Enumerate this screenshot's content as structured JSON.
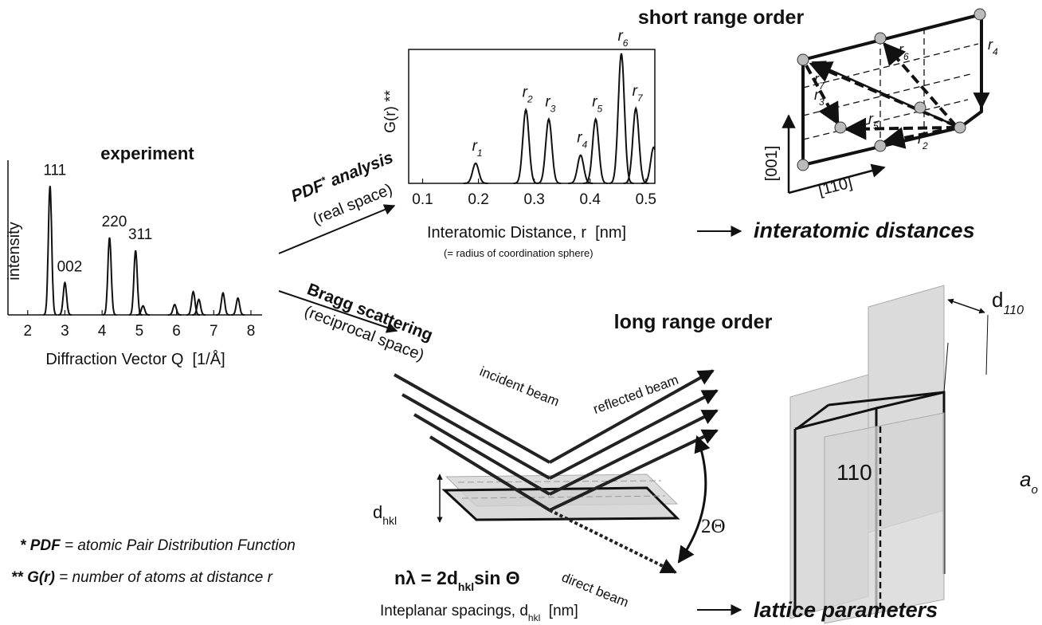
{
  "experiment": {
    "type": "peaks",
    "title": "experiment",
    "ylabel": "intensity",
    "xlabel": "Diffraction Vector Q  [1/Å]",
    "xlim": [
      1.47,
      8.3
    ],
    "ylim": [
      0,
      1.2
    ],
    "xticks": [
      2,
      3,
      4,
      5,
      6,
      7,
      8
    ],
    "x": [
      2.6,
      3.0,
      4.2,
      4.9,
      5.1,
      5.95,
      6.45,
      6.6,
      7.25,
      7.65
    ],
    "values": [
      1.0,
      0.25,
      0.6,
      0.5,
      0.07,
      0.08,
      0.18,
      0.12,
      0.17,
      0.13
    ],
    "peak_labels": [
      "111",
      "002",
      "220",
      "311",
      null,
      null,
      null,
      null,
      null,
      null
    ]
  },
  "pdf": {
    "type": "peaks",
    "ylabel": "G(r) **",
    "xlabel": "Interatomic Distance, r  [nm]",
    "note": "(= radius of coordination sphere)",
    "xlim": [
      0.075,
      0.516
    ],
    "ylim": [
      0,
      1
    ],
    "xticks": [
      0.1,
      0.2,
      0.3,
      0.4,
      0.5
    ],
    "x": [
      0.195,
      0.285,
      0.326,
      0.383,
      0.41,
      0.456,
      0.482,
      0.514
    ],
    "values": [
      0.15,
      0.55,
      0.48,
      0.21,
      0.48,
      0.97,
      0.56,
      0.27
    ],
    "peak_labels": [
      {
        "main": "r",
        "sub": "1"
      },
      {
        "main": "r",
        "sub": "2"
      },
      {
        "main": "r",
        "sub": "3"
      },
      {
        "main": "r",
        "sub": "4"
      },
      {
        "main": "r",
        "sub": "5"
      },
      {
        "main": "r",
        "sub": "6"
      },
      {
        "main": "r",
        "sub": "7"
      },
      null
    ]
  },
  "arrows": {
    "pdf": {
      "title": "PDF",
      "sup": "*",
      "title_rest": " analysis",
      "subtitle": "(real space)"
    },
    "bragg": {
      "title": "Bragg scattering",
      "subtitle": "(reciprocal space)"
    }
  },
  "short_range": {
    "title": "short range order",
    "labels": [
      {
        "main": "r",
        "sub": "7"
      },
      {
        "main": "r",
        "sub": "6"
      },
      {
        "main": "r",
        "sub": "4"
      },
      {
        "main": "r",
        "sub": "3"
      },
      {
        "main": "r",
        "sub": "5"
      },
      {
        "main": "r",
        "sub": "2"
      }
    ],
    "axes": [
      "[001]",
      "[110]"
    ],
    "result": "interatomic distances"
  },
  "long_range": {
    "title": "long range order",
    "beams": [
      "incident beam",
      "reflected beam",
      "direct beam"
    ],
    "angle": "2Θ",
    "spacing": {
      "main": "d",
      "sub": "hkl"
    },
    "plane": "110",
    "lattice_constant": {
      "main": "a",
      "sub": "o"
    },
    "plane_spacing": {
      "main": "d",
      "sub": "110"
    },
    "bragg_law": {
      "left": "nλ = 2d",
      "sub": "hkl",
      "right": "sin Θ"
    },
    "xlabel": {
      "left": "Inteplanar spacings, d",
      "sub": "hkl",
      "right": "  [nm]"
    },
    "result": "lattice parameters"
  },
  "footnotes": [
    {
      "mark": "* ",
      "term": "PDF",
      "text": " = atomic Pair Distribution Function"
    },
    {
      "mark": "** ",
      "term": "G(r)",
      "text": " = number of atoms at distance r"
    }
  ]
}
